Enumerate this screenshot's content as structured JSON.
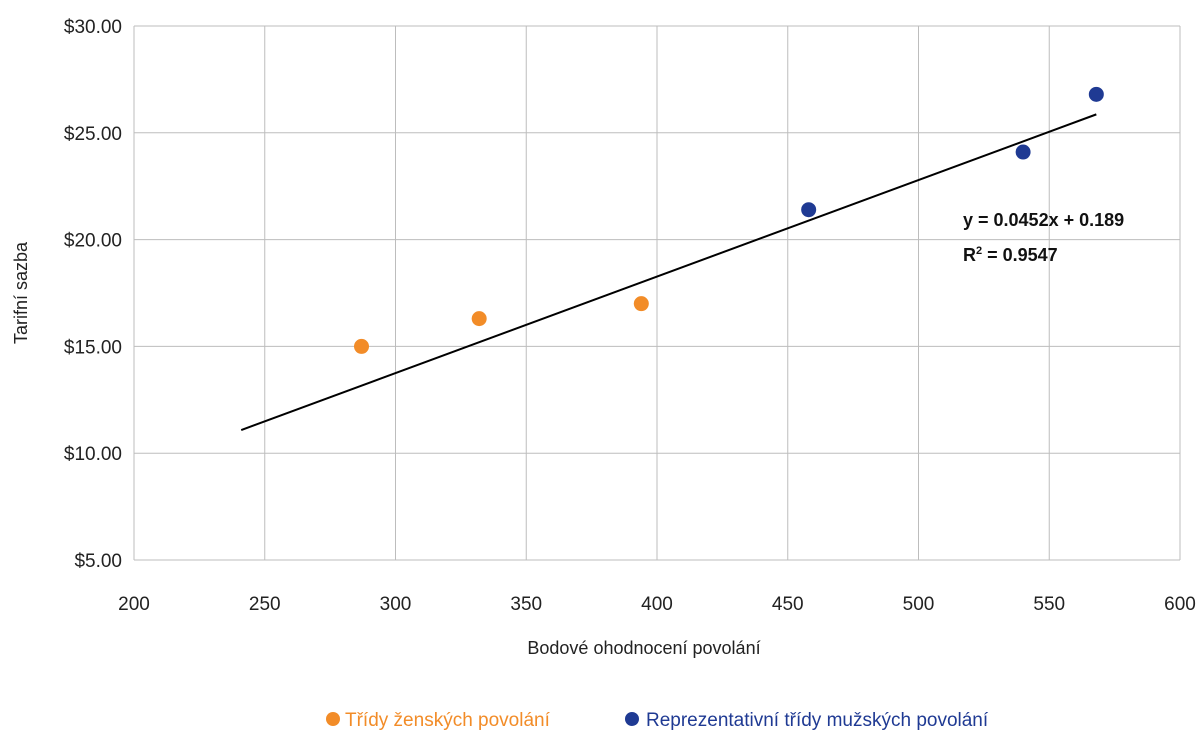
{
  "chart_data": {
    "type": "scatter",
    "title": "",
    "xlabel": "Bodové ohodnocení povolání",
    "ylabel": "Tarifní sazba",
    "xlim": [
      200,
      600
    ],
    "ylim": [
      5,
      30
    ],
    "xticks": [
      200,
      250,
      300,
      350,
      400,
      450,
      500,
      550,
      600
    ],
    "yticks": [
      5,
      10,
      15,
      20,
      25,
      30
    ],
    "x_tick_labels": [
      "200",
      "250",
      "300",
      "350",
      "400",
      "450",
      "500",
      "550",
      "600"
    ],
    "y_tick_labels": [
      "$5.00",
      "$10.00",
      "$15.00",
      "$20.00",
      "$25.00",
      "$30.00"
    ],
    "grid": true,
    "legend_position": "bottom",
    "series": [
      {
        "name": "Třídy ženských povolání",
        "color": "#f28c28",
        "points": [
          {
            "x": 287,
            "y": 15.0
          },
          {
            "x": 332,
            "y": 16.3
          },
          {
            "x": 394,
            "y": 17.0
          }
        ]
      },
      {
        "name": "Reprezentativní třídy mužských povolání",
        "color": "#1f3a93",
        "points": [
          {
            "x": 458,
            "y": 21.4
          },
          {
            "x": 540,
            "y": 24.1
          },
          {
            "x": 568,
            "y": 26.8
          }
        ]
      }
    ],
    "trendline": {
      "type": "linear",
      "slope": 0.0452,
      "intercept": 0.189,
      "x_range": [
        241,
        568
      ],
      "color": "#000000",
      "equation_label": "y = 0.0452x + 0.189",
      "r2_label_prefix": "R",
      "r2_label_suffix": " = 0.9547",
      "r2_label_sup": "2"
    }
  }
}
